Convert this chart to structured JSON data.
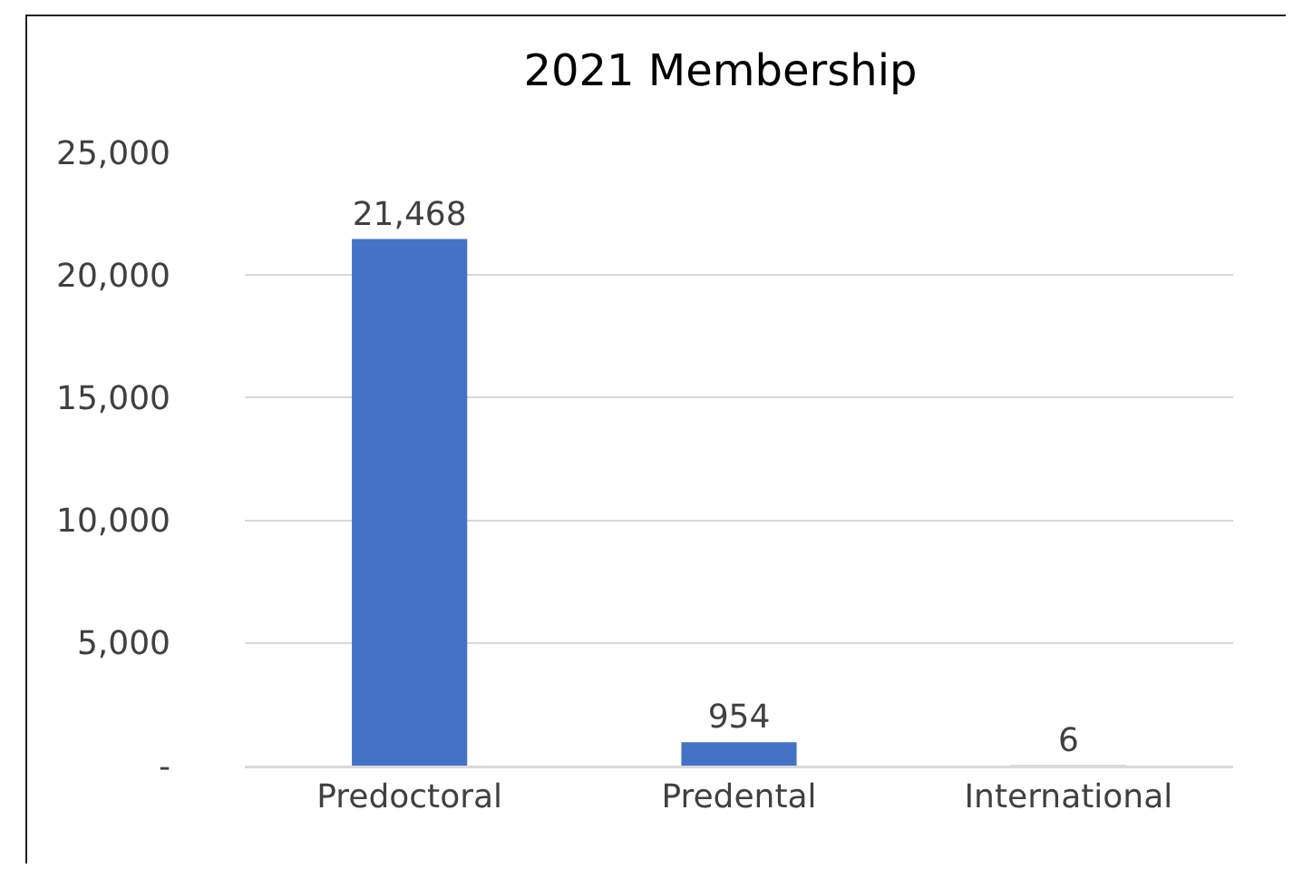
{
  "chart_data": {
    "type": "bar",
    "title": "2021 Membership",
    "categories": [
      "Predoctoral",
      "Predental",
      "International"
    ],
    "values": [
      21468,
      954,
      6
    ],
    "value_labels": [
      "21,468",
      "954",
      "6"
    ],
    "color": "#4472c4",
    "ylim": [
      0,
      25000
    ],
    "yticks": [
      {
        "value": 0,
        "label": "-"
      },
      {
        "value": 5000,
        "label": "5,000"
      },
      {
        "value": 10000,
        "label": "10,000"
      },
      {
        "value": 15000,
        "label": "15,000"
      },
      {
        "value": 20000,
        "label": "20,000"
      },
      {
        "value": 25000,
        "label": "25,000"
      }
    ],
    "grid": "y"
  }
}
